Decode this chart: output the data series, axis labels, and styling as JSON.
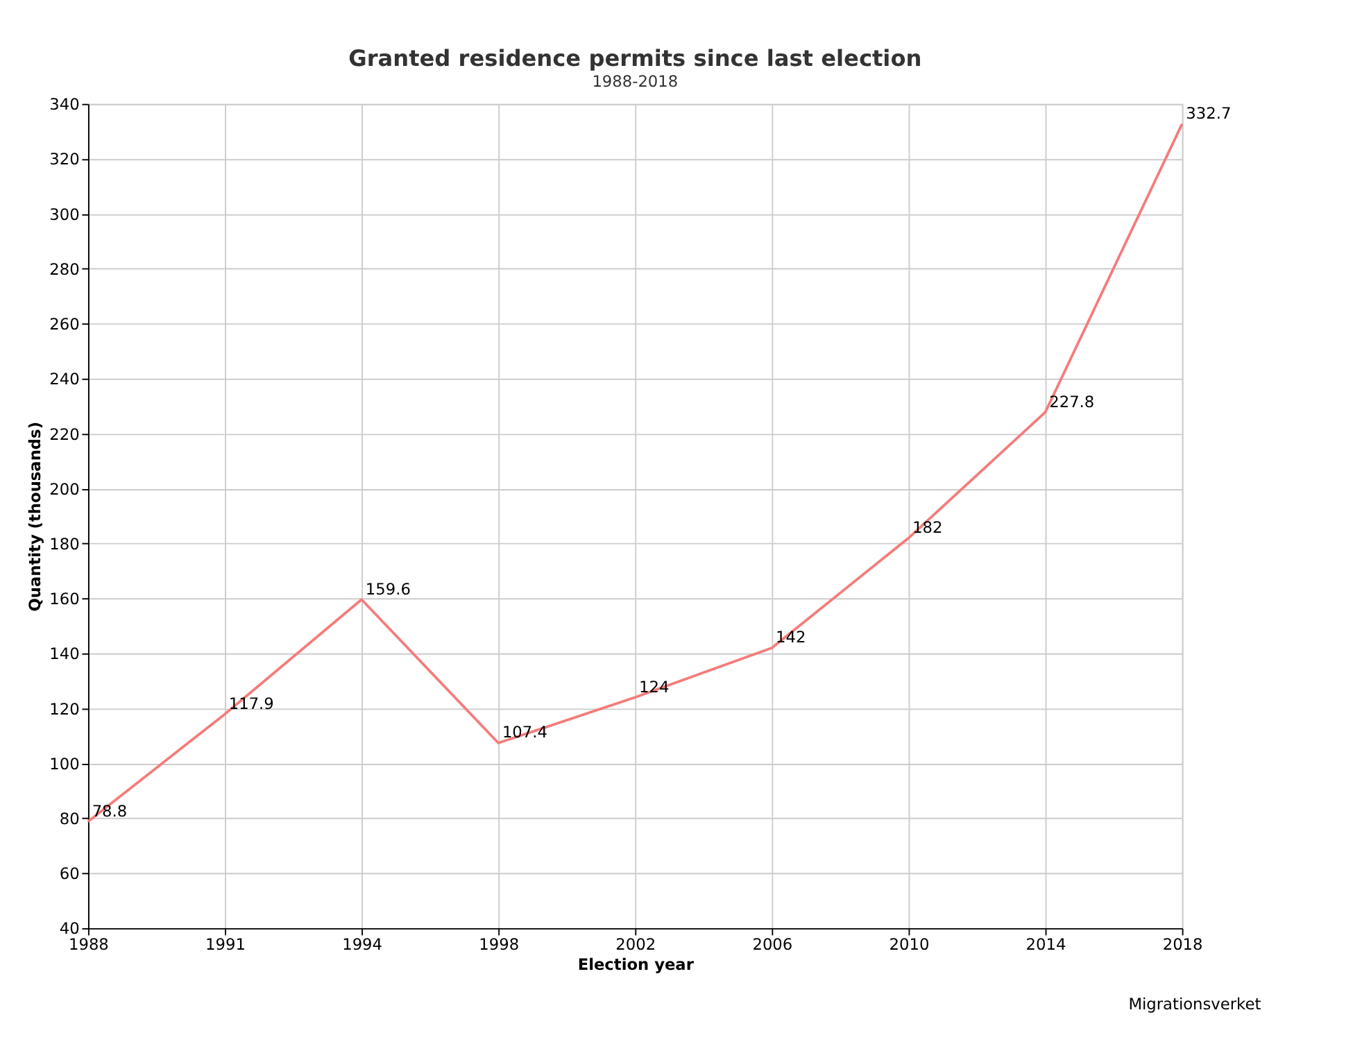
{
  "chart_data": {
    "type": "line",
    "title": "Granted residence permits since last election",
    "subtitle": "1988-2018",
    "xlabel": "Election year",
    "ylabel": "Quantity (thousands)",
    "categories": [
      "1988",
      "1991",
      "1994",
      "1998",
      "2002",
      "2006",
      "2010",
      "2014",
      "2018"
    ],
    "series": [
      {
        "color": "#f47c7c",
        "values": [
          78.8,
          117.9,
          159.6,
          107.4,
          124,
          142,
          182,
          227.8,
          332.7
        ]
      }
    ],
    "ylim": [
      40,
      340
    ],
    "yticks": [
      40,
      60,
      80,
      100,
      120,
      140,
      160,
      180,
      200,
      220,
      240,
      260,
      280,
      300,
      320,
      340
    ],
    "grid": true,
    "data_labels": true,
    "marker": "none",
    "line_style": "solid",
    "annotations": [
      "Migrationsverket"
    ]
  }
}
